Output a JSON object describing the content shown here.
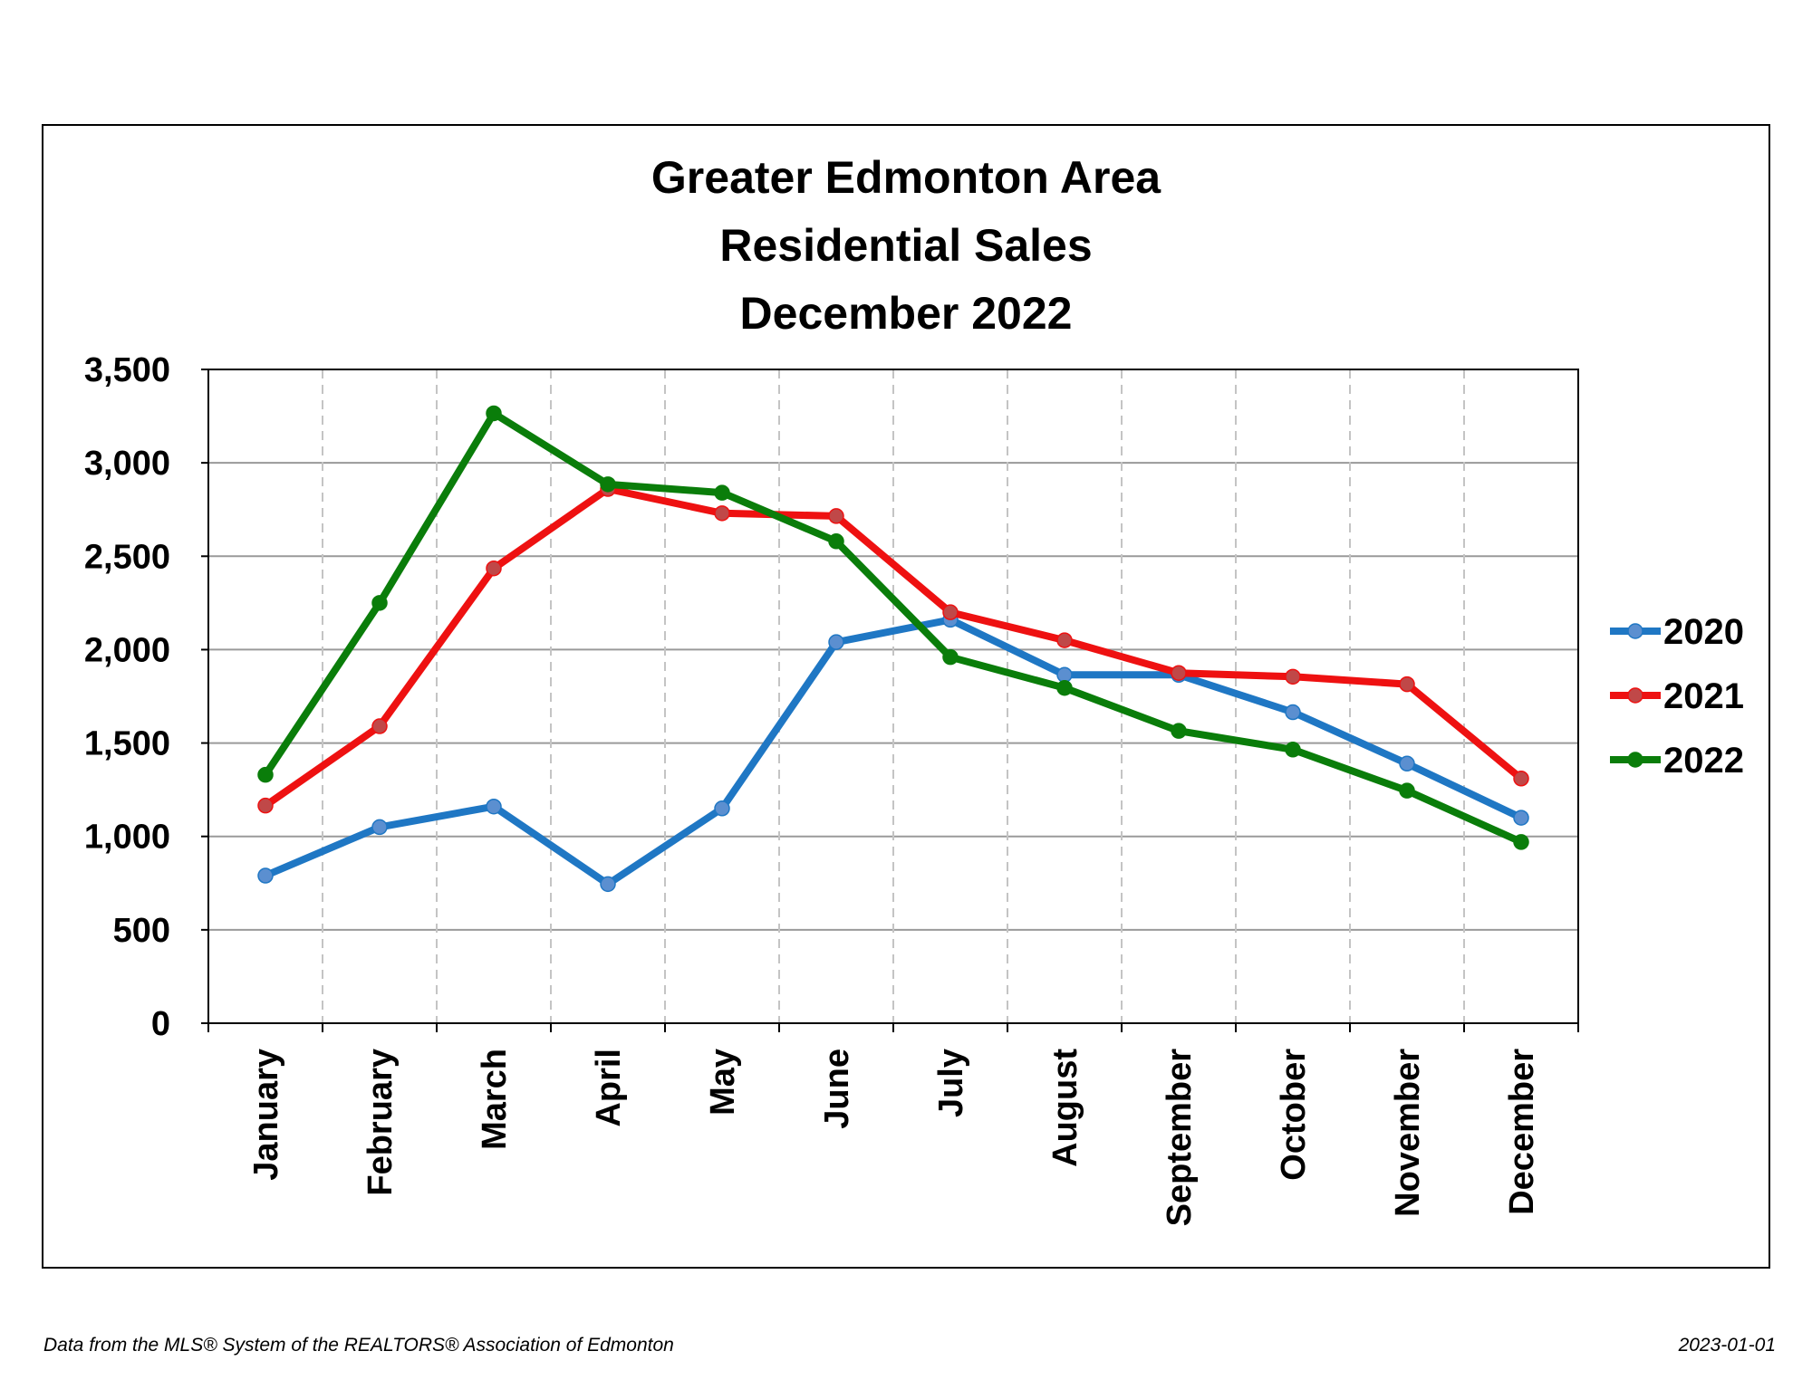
{
  "chart_data": {
    "type": "line",
    "title": [
      "Greater Edmonton Area",
      "Residential Sales",
      "December 2022"
    ],
    "categories": [
      "January",
      "February",
      "March",
      "April",
      "May",
      "June",
      "July",
      "August",
      "September",
      "October",
      "November",
      "December"
    ],
    "series": [
      {
        "name": "2020",
        "color": "#1f77c4",
        "marker_color": "#5b8fd0",
        "values": [
          790,
          1050,
          1160,
          745,
          1150,
          2040,
          2160,
          1865,
          1865,
          1665,
          1390,
          1100
        ]
      },
      {
        "name": "2021",
        "color": "#ee1111",
        "marker_color": "#c04848",
        "values": [
          1165,
          1590,
          2435,
          2860,
          2730,
          2715,
          2200,
          2050,
          1875,
          1855,
          1815,
          1310
        ]
      },
      {
        "name": "2022",
        "color": "#0a7d0a",
        "marker_color": "#0a7d0a",
        "values": [
          1330,
          2250,
          3265,
          2885,
          2840,
          2580,
          1960,
          1795,
          1565,
          1465,
          1245,
          970
        ]
      }
    ],
    "ylim": [
      0,
      3500
    ],
    "yticks": [
      0,
      500,
      1000,
      1500,
      2000,
      2500,
      3000,
      3500
    ],
    "ytick_labels": [
      "0",
      "500",
      "1,000",
      "1,500",
      "2,000",
      "2,500",
      "3,000",
      "3,500"
    ],
    "grid": "horizontal solid, vertical dashed",
    "legend_position": "right"
  },
  "footer": {
    "source": "Data from the MLS® System of the REALTORS® Association of Edmonton",
    "date": "2023-01-01"
  }
}
